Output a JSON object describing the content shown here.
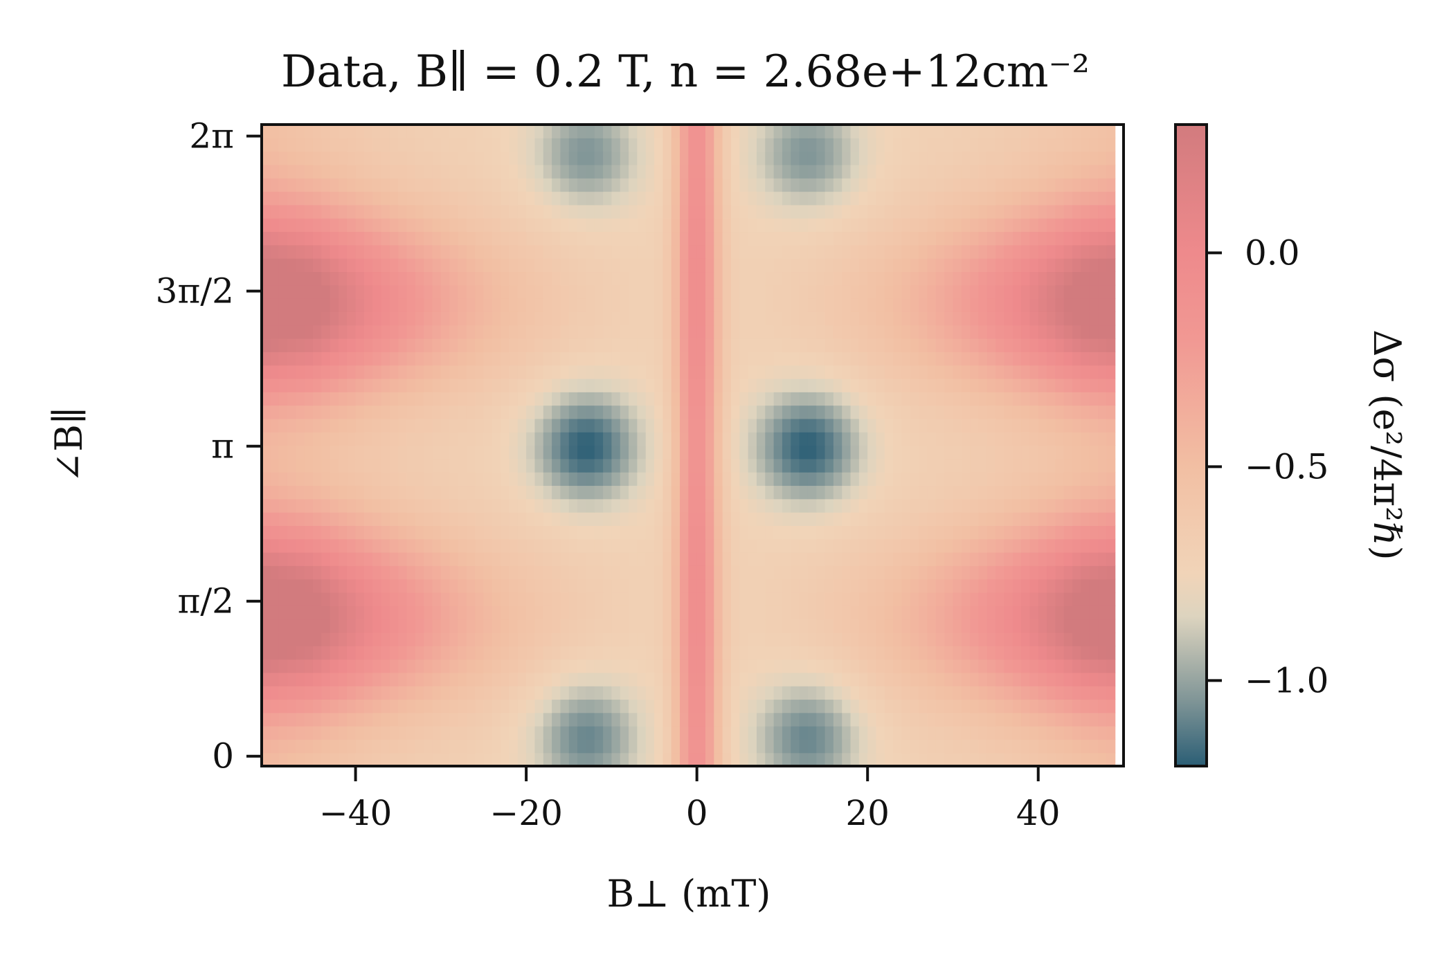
{
  "chart_data": {
    "type": "heatmap",
    "title": "Data, B∥ = 0.2 T, n = 2.68e+12cm⁻²",
    "xlabel": "B⊥ (mT)",
    "ylabel": "∠B∥",
    "xlim": [
      -51,
      50
    ],
    "ylim": [
      -0.1,
      6.4
    ],
    "x_data_max": 49,
    "xticks": [
      {
        "value": -40,
        "label": "−40"
      },
      {
        "value": -20,
        "label": "−20"
      },
      {
        "value": 0,
        "label": "0"
      },
      {
        "value": 20,
        "label": "20"
      },
      {
        "value": 40,
        "label": "40"
      }
    ],
    "yticks": [
      {
        "value": 0,
        "label": "0"
      },
      {
        "value": 1.5708,
        "label": "π/2"
      },
      {
        "value": 3.1416,
        "label": "π"
      },
      {
        "value": 4.7124,
        "label": "3π/2"
      },
      {
        "value": 6.2832,
        "label": "2π"
      }
    ],
    "colorbar": {
      "label": "Δσ (e²/4π²ℏ)",
      "range": [
        -1.2,
        0.3
      ],
      "ticks": [
        {
          "value": 0.0,
          "label": "0.0"
        },
        {
          "value": -0.5,
          "label": "−0.5"
        },
        {
          "value": -1.0,
          "label": "−1.0"
        }
      ],
      "colormap": [
        {
          "value": -1.2,
          "color": "#2b5e75"
        },
        {
          "value": -1.05,
          "color": "#7e9496"
        },
        {
          "value": -0.85,
          "color": "#ddd4bf"
        },
        {
          "value": -0.75,
          "color": "#f1d4b8"
        },
        {
          "value": -0.5,
          "color": "#f2bfa3"
        },
        {
          "value": -0.2,
          "color": "#f19893"
        },
        {
          "value": 0.0,
          "color": "#ee8a8c"
        },
        {
          "value": 0.3,
          "color": "#d27b7e"
        }
      ]
    },
    "grid": false,
    "features": {
      "dips": [
        {
          "x": -13,
          "y": 6.1,
          "depth": -1.05
        },
        {
          "x": 13,
          "y": 6.1,
          "depth": -1.05
        },
        {
          "x": -13,
          "y": 3.14,
          "depth": -1.2
        },
        {
          "x": 13,
          "y": 3.14,
          "depth": -1.2
        },
        {
          "x": -13,
          "y": 0.2,
          "depth": -1.1
        },
        {
          "x": 13,
          "y": 0.2,
          "depth": -1.1
        }
      ],
      "central_peak": {
        "x": 0,
        "value": -0.05
      },
      "edge_bands": [
        {
          "y": 1.4,
          "value": 0.15
        },
        {
          "y": 4.6,
          "value": 0.15
        }
      ]
    }
  }
}
